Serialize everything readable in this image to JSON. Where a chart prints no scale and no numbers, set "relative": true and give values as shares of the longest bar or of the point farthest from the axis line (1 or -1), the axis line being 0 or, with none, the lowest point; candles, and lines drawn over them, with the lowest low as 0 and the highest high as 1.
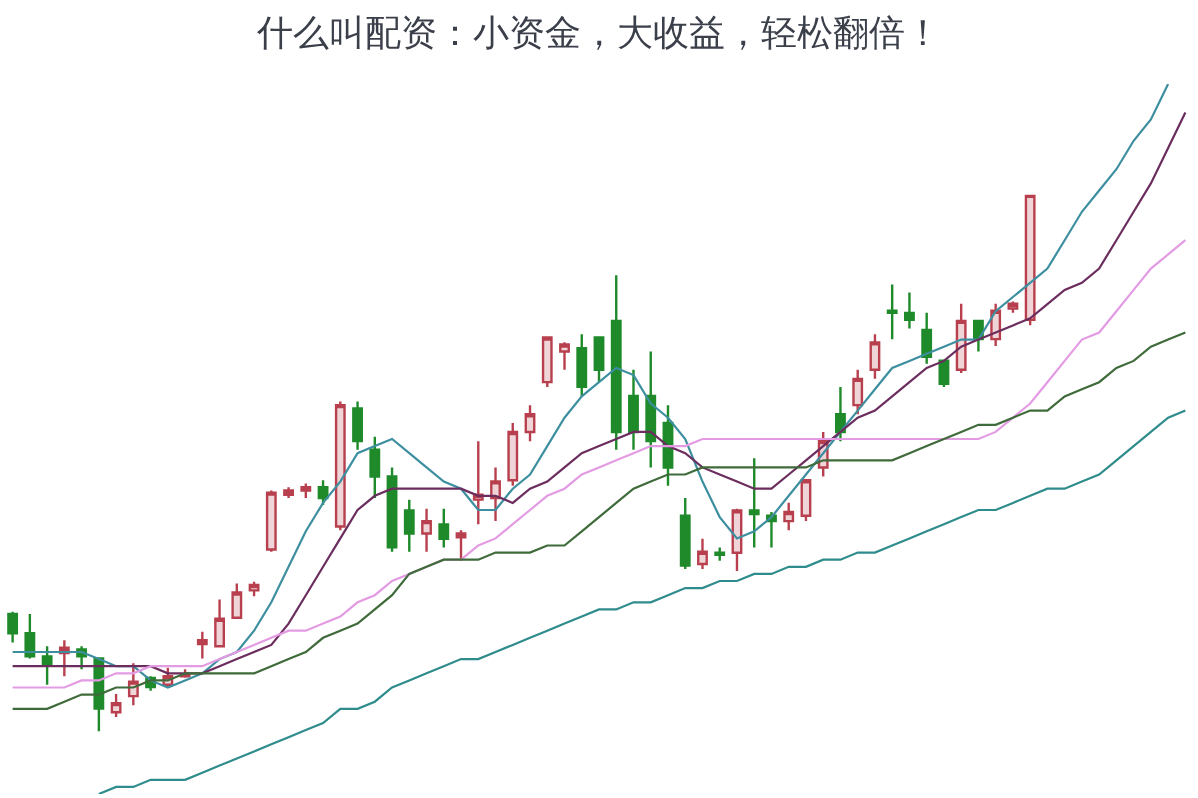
{
  "chart_data": [
    {
      "type": "candlestick",
      "title": "什么叫配资：小资金，大收益，轻松翻倍！",
      "relative": true,
      "categories": [
        null,
        null,
        null,
        null,
        null,
        null,
        null,
        null,
        null,
        null,
        null,
        null,
        null,
        null,
        null,
        null,
        null,
        null,
        null,
        null,
        null,
        null,
        null,
        null,
        null,
        null,
        null,
        null,
        null,
        null,
        null,
        null,
        null,
        null,
        null,
        null,
        null,
        null,
        null,
        null,
        null,
        null,
        null,
        null,
        null,
        null,
        null,
        null,
        null,
        null,
        null,
        null,
        null,
        null,
        null,
        null,
        null,
        null,
        null,
        null
      ],
      "ohlc": [
        [
          0.219,
          0.223,
          0.166,
          0.183
        ],
        [
          0.183,
          0.219,
          0.136,
          0.14
        ],
        [
          0.14,
          0.159,
          0.087,
          0.123
        ],
        [
          0.146,
          0.17,
          0.103,
          0.156
        ],
        [
          0.153,
          0.159,
          0.116,
          0.14
        ],
        [
          0.136,
          0.136,
          0.0,
          0.043
        ],
        [
          0.036,
          0.07,
          0.027,
          0.053
        ],
        [
          0.066,
          0.127,
          0.049,
          0.093
        ],
        [
          0.1,
          0.103,
          0.076,
          0.083
        ],
        [
          0.087,
          0.119,
          0.083,
          0.103
        ],
        [
          0.103,
          0.116,
          0.1,
          0.106
        ],
        [
          0.163,
          0.186,
          0.136,
          0.17
        ],
        [
          0.159,
          0.246,
          0.159,
          0.21
        ],
        [
          0.212,
          0.276,
          0.212,
          0.259
        ],
        [
          0.263,
          0.279,
          0.252,
          0.273
        ],
        [
          0.339,
          0.449,
          0.335,
          0.445
        ],
        [
          0.441,
          0.455,
          0.435,
          0.449
        ],
        [
          0.449,
          0.462,
          0.435,
          0.455
        ],
        [
          0.455,
          0.468,
          0.422,
          0.435
        ],
        [
          0.382,
          0.615,
          0.375,
          0.608
        ],
        [
          0.602,
          0.615,
          0.525,
          0.541
        ],
        [
          0.525,
          0.549,
          0.435,
          0.475
        ],
        [
          0.475,
          0.492,
          0.335,
          0.343
        ],
        [
          0.412,
          0.432,
          0.335,
          0.369
        ],
        [
          0.369,
          0.415,
          0.335,
          0.392
        ],
        [
          0.386,
          0.415,
          0.343,
          0.359
        ],
        [
          0.362,
          0.375,
          0.318,
          0.369
        ],
        [
          0.432,
          0.541,
          0.386,
          0.441
        ],
        [
          0.435,
          0.492,
          0.392,
          0.466
        ],
        [
          0.468,
          0.575,
          0.458,
          0.558
        ],
        [
          0.558,
          0.608,
          0.541,
          0.591
        ],
        [
          0.651,
          0.734,
          0.642,
          0.734
        ],
        [
          0.708,
          0.725,
          0.674,
          0.721
        ],
        [
          0.714,
          0.74,
          0.625,
          0.642
        ],
        [
          0.734,
          0.734,
          0.651,
          0.674
        ],
        [
          0.765,
          0.85,
          0.525,
          0.558
        ],
        [
          0.625,
          0.674,
          0.525,
          0.558
        ],
        [
          0.625,
          0.708,
          0.492,
          0.541
        ],
        [
          0.575,
          0.608,
          0.458,
          0.492
        ],
        [
          0.402,
          0.435,
          0.303,
          0.309
        ],
        [
          0.312,
          0.359,
          0.303,
          0.335
        ],
        [
          0.333,
          0.343,
          0.318,
          0.329
        ],
        [
          0.333,
          0.415,
          0.299,
          0.412
        ],
        [
          0.412,
          0.509,
          0.343,
          0.405
        ],
        [
          0.402,
          0.409,
          0.343,
          0.392
        ],
        [
          0.392,
          0.426,
          0.375,
          0.409
        ],
        [
          0.402,
          0.468,
          0.392,
          0.468
        ],
        [
          0.492,
          0.558,
          0.475,
          0.541
        ],
        [
          0.591,
          0.642,
          0.541,
          0.558
        ],
        [
          0.608,
          0.674,
          0.591,
          0.657
        ],
        [
          0.674,
          0.74,
          0.657,
          0.725
        ],
        [
          0.784,
          0.833,
          0.731,
          0.78
        ],
        [
          0.78,
          0.818,
          0.751,
          0.767
        ],
        [
          0.748,
          0.78,
          0.685,
          0.698
        ],
        [
          0.691,
          0.691,
          0.642,
          0.648
        ],
        [
          0.674,
          0.797,
          0.668,
          0.765
        ],
        [
          0.765,
          0.765,
          0.708,
          0.731
        ],
        [
          0.731,
          0.797,
          0.718,
          0.784
        ],
        [
          0.788,
          0.801,
          0.78,
          0.797
        ],
        [
          0.767,
          1.0,
          0.757,
          1.0
        ]
      ],
      "colors": [
        "#1f8a2a",
        "#1f8a2a",
        "#1f8a2a",
        "#b8404e",
        "#1f8a2a",
        "#1f8a2a",
        "#b8404e",
        "#b8404e",
        "#1f8a2a",
        "#b8404e",
        "#b8404e",
        "#b8404e",
        "#b8404e",
        "#b8404e",
        "#b8404e",
        "#b8404e",
        "#b8404e",
        "#b8404e",
        "#1f8a2a",
        "#b8404e",
        "#1f8a2a",
        "#1f8a2a",
        "#1f8a2a",
        "#1f8a2a",
        "#b8404e",
        "#1f8a2a",
        "#b8404e",
        "#b8404e",
        "#b8404e",
        "#b8404e",
        "#b8404e",
        "#b8404e",
        "#b8404e",
        "#1f8a2a",
        "#1f8a2a",
        "#1f8a2a",
        "#1f8a2a",
        "#1f8a2a",
        "#1f8a2a",
        "#1f8a2a",
        "#b8404e",
        "#1f8a2a",
        "#b8404e",
        "#1f8a2a",
        "#1f8a2a",
        "#b8404e",
        "#b8404e",
        "#b8404e",
        "#1f8a2a",
        "#b8404e",
        "#b8404e",
        "#1f8a2a",
        "#1f8a2a",
        "#1f8a2a",
        "#1f8a2a",
        "#b8404e",
        "#1f8a2a",
        "#b8404e",
        "#b8404e",
        "#b8404e"
      ]
    },
    {
      "type": "line",
      "relative": true,
      "categories": [
        null,
        null,
        null,
        null,
        null,
        null,
        null,
        null,
        null,
        null,
        null,
        null,
        null,
        null,
        null,
        null,
        null,
        null,
        null,
        null,
        null,
        null,
        null,
        null,
        null,
        null,
        null,
        null,
        null,
        null,
        null,
        null,
        null,
        null,
        null,
        null,
        null,
        null,
        null,
        null,
        null,
        null,
        null,
        null,
        null,
        null,
        null,
        null,
        null,
        null,
        null,
        null,
        null,
        null,
        null,
        null,
        null,
        null,
        null,
        null,
        null,
        null,
        null,
        null,
        null,
        null,
        null,
        null,
        null
      ],
      "series": [
        {
          "color": "#3d8fa0",
          "values": [
            0.2,
            0.2,
            0.2,
            0.2,
            0.2,
            0.19,
            0.18,
            0.18,
            0.16,
            0.15,
            0.16,
            0.17,
            0.19,
            0.2,
            0.23,
            0.27,
            0.32,
            0.37,
            0.41,
            0.44,
            0.48,
            0.49,
            0.5,
            0.48,
            0.46,
            0.44,
            0.43,
            0.4,
            0.4,
            0.43,
            0.45,
            0.49,
            0.53,
            0.56,
            0.58,
            0.6,
            0.59,
            0.55,
            0.53,
            0.5,
            0.44,
            0.39,
            0.36,
            0.37,
            0.39,
            0.42,
            0.45,
            0.48,
            0.51,
            0.54,
            0.57,
            0.6,
            0.61,
            0.62,
            0.63,
            0.64,
            0.64,
            0.68,
            0.7,
            0.72,
            0.74,
            0.78,
            0.82,
            0.85,
            0.88,
            0.92,
            0.95,
            1.0,
            null
          ]
        },
        {
          "color": "#6b2d5e",
          "values": [
            0.18,
            0.18,
            0.18,
            0.18,
            0.18,
            0.18,
            0.18,
            0.18,
            0.18,
            0.17,
            0.17,
            0.17,
            0.18,
            0.19,
            0.2,
            0.21,
            0.24,
            0.28,
            0.32,
            0.36,
            0.4,
            0.42,
            0.43,
            0.43,
            0.43,
            0.43,
            0.43,
            0.42,
            0.42,
            0.41,
            0.43,
            0.44,
            0.46,
            0.48,
            0.49,
            0.5,
            0.51,
            0.51,
            0.49,
            0.48,
            0.46,
            0.45,
            0.44,
            0.43,
            0.43,
            0.45,
            0.47,
            0.49,
            0.51,
            0.53,
            0.54,
            0.56,
            0.58,
            0.6,
            0.61,
            0.63,
            0.64,
            0.65,
            0.66,
            0.67,
            0.69,
            0.71,
            0.72,
            0.74,
            0.78,
            0.82,
            0.86,
            0.91,
            0.96
          ]
        },
        {
          "color": "#e39be3",
          "values": [
            0.15,
            0.15,
            0.15,
            0.15,
            0.16,
            0.16,
            0.17,
            0.17,
            0.18,
            0.18,
            0.18,
            0.18,
            0.19,
            0.2,
            0.21,
            0.22,
            0.23,
            0.23,
            0.24,
            0.25,
            0.27,
            0.28,
            0.3,
            0.31,
            0.32,
            0.33,
            0.33,
            0.35,
            0.36,
            0.38,
            0.4,
            0.42,
            0.43,
            0.45,
            0.46,
            0.47,
            0.48,
            0.49,
            0.49,
            0.49,
            0.5,
            0.5,
            0.5,
            0.5,
            0.5,
            0.5,
            0.5,
            0.5,
            0.5,
            0.5,
            0.5,
            0.5,
            0.5,
            0.5,
            0.5,
            0.5,
            0.5,
            0.51,
            0.53,
            0.55,
            0.58,
            0.61,
            0.64,
            0.65,
            0.68,
            0.71,
            0.74,
            0.76,
            0.78
          ]
        },
        {
          "color": "#3f6b3a",
          "values": [
            0.12,
            0.12,
            0.12,
            0.13,
            0.14,
            0.14,
            0.15,
            0.15,
            0.16,
            0.16,
            0.17,
            0.17,
            0.17,
            0.17,
            0.17,
            0.18,
            0.19,
            0.2,
            0.22,
            0.23,
            0.24,
            0.26,
            0.28,
            0.31,
            0.32,
            0.33,
            0.33,
            0.33,
            0.34,
            0.34,
            0.34,
            0.35,
            0.35,
            0.37,
            0.39,
            0.41,
            0.43,
            0.44,
            0.45,
            0.45,
            0.46,
            0.46,
            0.46,
            0.46,
            0.46,
            0.46,
            0.46,
            0.47,
            0.47,
            0.47,
            0.47,
            0.47,
            0.48,
            0.49,
            0.5,
            0.51,
            0.52,
            0.52,
            0.53,
            0.54,
            0.54,
            0.56,
            0.57,
            0.58,
            0.6,
            0.61,
            0.63,
            0.64,
            0.65
          ]
        },
        {
          "color": "#2f8c8c",
          "values": [
            null,
            null,
            null,
            null,
            null,
            0.0,
            0.01,
            0.01,
            0.02,
            0.02,
            0.02,
            0.03,
            0.04,
            0.05,
            0.06,
            0.07,
            0.08,
            0.09,
            0.1,
            0.12,
            0.12,
            0.13,
            0.15,
            0.16,
            0.17,
            0.18,
            0.19,
            0.19,
            0.2,
            0.21,
            0.22,
            0.23,
            0.24,
            0.25,
            0.26,
            0.26,
            0.27,
            0.27,
            0.28,
            0.29,
            0.29,
            0.3,
            0.3,
            0.31,
            0.31,
            0.32,
            0.32,
            0.33,
            0.33,
            0.34,
            0.34,
            0.35,
            0.36,
            0.37,
            0.38,
            0.39,
            0.4,
            0.4,
            0.41,
            0.42,
            0.43,
            0.43,
            0.44,
            0.45,
            0.47,
            0.49,
            0.51,
            0.53,
            0.54
          ]
        }
      ]
    }
  ]
}
